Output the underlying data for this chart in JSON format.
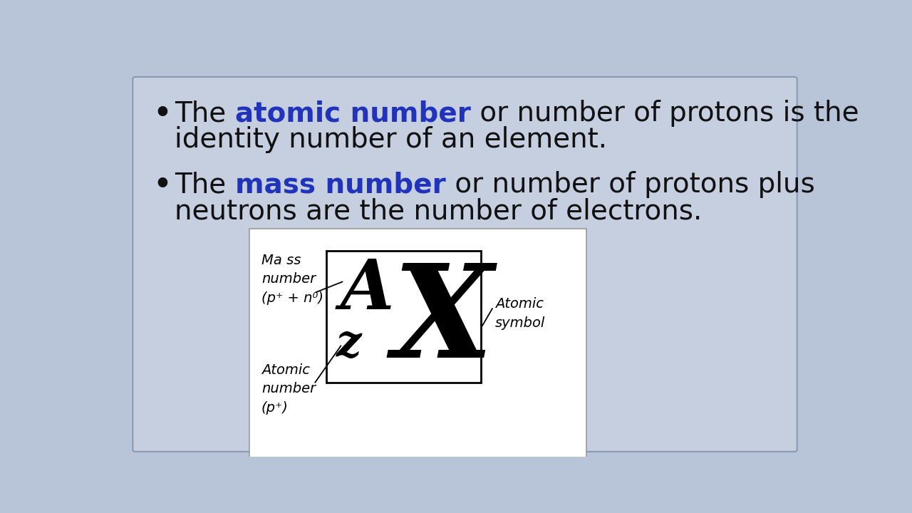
{
  "background_color": "#b8c4d8",
  "content_bg": "#c5cfe0",
  "slide_border_color": "#8a9ab0",
  "blue_color": "#2233bb",
  "text_color": "#111111",
  "font_size_bullet": 28,
  "font_size_label": 14,
  "diagram_label_mass": "Ma ss\nnumber\n(p⁺ + n⁰)",
  "diagram_label_atomic": "Atomic\nnumber\n(p⁺)",
  "diagram_label_symbol": "Atomic\nsymbol"
}
